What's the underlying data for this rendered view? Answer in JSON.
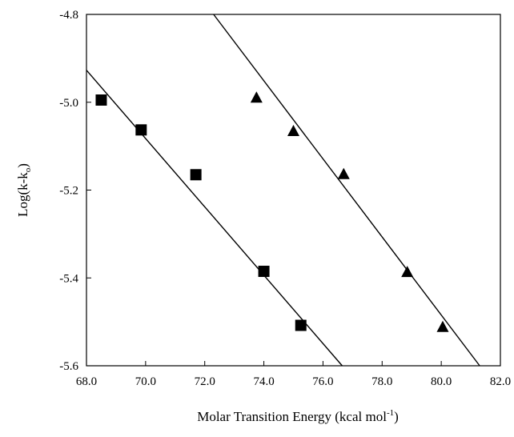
{
  "chart_data": {
    "type": "scatter",
    "xlabel": "Molar Transition Energy (kcal mol",
    "xlabel_sup": "-1",
    "xlabel_end": ")",
    "ylabel": "Log(k-k",
    "ylabel_sub": "o",
    "ylabel_end": ")",
    "xlim": [
      68.0,
      82.0
    ],
    "ylim": [
      -5.6,
      -4.8
    ],
    "xticks": [
      "68.0",
      "70.0",
      "72.0",
      "74.0",
      "76.0",
      "78.0",
      "80.0",
      "82.0"
    ],
    "yticks": [
      "-4.8",
      "-5.0",
      "-5.2",
      "-5.4",
      "-5.6"
    ],
    "grid": false,
    "series": [
      {
        "marker": "square",
        "points": [
          {
            "x": 68.5,
            "y": -4.995
          },
          {
            "x": 69.85,
            "y": -5.063
          },
          {
            "x": 71.7,
            "y": -5.165
          },
          {
            "x": 74.0,
            "y": -5.385
          },
          {
            "x": 75.25,
            "y": -5.508
          }
        ],
        "fit_line": {
          "x": [
            68.0,
            76.65
          ],
          "y": [
            -4.927,
            -5.6
          ]
        }
      },
      {
        "marker": "triangle",
        "points": [
          {
            "x": 73.75,
            "y": -4.99
          },
          {
            "x": 75.0,
            "y": -5.066
          },
          {
            "x": 76.7,
            "y": -5.164
          },
          {
            "x": 78.85,
            "y": -5.387
          },
          {
            "x": 80.05,
            "y": -5.512
          }
        ],
        "fit_line": {
          "x": [
            72.3,
            81.3
          ],
          "y": [
            -4.8,
            -5.6
          ]
        }
      }
    ]
  }
}
